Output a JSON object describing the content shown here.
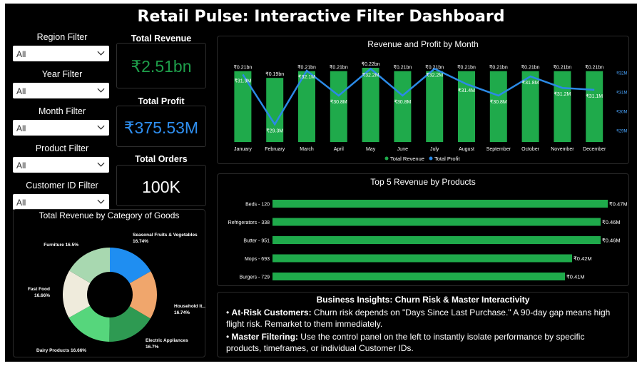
{
  "title": "Retail Pulse: Interactive Filter Dashboard",
  "filters": [
    {
      "label": "Region Filter",
      "value": "All"
    },
    {
      "label": "Year Filter",
      "value": "All"
    },
    {
      "label": "Month Filter",
      "value": "All"
    },
    {
      "label": "Product Filter",
      "value": "All"
    },
    {
      "label": "Customer ID Filter",
      "value": "All"
    }
  ],
  "kpis": {
    "revenue": {
      "title": "Total Revenue",
      "value": "₹2.51bn",
      "color": "#1e9e4a"
    },
    "profit": {
      "title": "Total Profit",
      "value": "₹375.53M",
      "color": "#2f8ff0"
    },
    "orders": {
      "title": "Total Orders",
      "value": "100K",
      "color": "#ffffff"
    }
  },
  "colors": {
    "revenue_bar": "#1faa4b",
    "profit_line": "#2b8ae6",
    "background": "#000000"
  },
  "chart_data": [
    {
      "type": "bar",
      "title": "Revenue and Profit by Month",
      "categories": [
        "January",
        "February",
        "March",
        "April",
        "May",
        "June",
        "July",
        "August",
        "September",
        "October",
        "November",
        "December"
      ],
      "series": [
        {
          "name": "Total Revenue",
          "type": "bar",
          "values": [
            0.21,
            0.19,
            0.21,
            0.21,
            0.22,
            0.21,
            0.21,
            0.21,
            0.21,
            0.21,
            0.21,
            0.21
          ],
          "labels": [
            "₹0.21bn",
            "₹0.19bn",
            "₹0.21bn",
            "₹0.21bn",
            "₹0.22bn",
            "₹0.21bn",
            "₹0.21bn",
            "₹0.21bn",
            "₹0.21bn",
            "₹0.21bn",
            "₹0.21bn",
            "₹0.21bn"
          ]
        },
        {
          "name": "Total Profit",
          "type": "line",
          "values": [
            31.9,
            29.3,
            32.1,
            30.8,
            32.2,
            30.8,
            32.2,
            31.4,
            30.8,
            31.8,
            31.2,
            31.1
          ],
          "labels": [
            "₹31.9M",
            "₹29.3M",
            "₹32.1M",
            "₹30.8M",
            "₹32.2M",
            "₹30.8M",
            "₹32.2M",
            "₹31.4M",
            "₹30.8M",
            "₹31.8M",
            "₹31.2M",
            "₹31.1M"
          ]
        }
      ],
      "y2_ticks": [
        "₹32M",
        "₹31M",
        "₹30M",
        "₹29M"
      ],
      "y2_tick_values": [
        32,
        31,
        30,
        29
      ],
      "legend": [
        "Total Revenue",
        "Total Profit"
      ]
    },
    {
      "type": "bar",
      "orientation": "horizontal",
      "title": "Top 5 Revenue by Products",
      "categories": [
        "Beds - 120",
        "Refrigerators - 338",
        "Butter - 951",
        "Mops - 693",
        "Burgers - 729"
      ],
      "values": [
        0.47,
        0.46,
        0.46,
        0.42,
        0.41
      ],
      "labels": [
        "₹0.47M",
        "₹0.46M",
        "₹0.46M",
        "₹0.42M",
        "₹0.41M"
      ]
    },
    {
      "type": "pie",
      "title": "Total Revenue by Category of Goods",
      "categories": [
        "Seasonal Fruits & Vegetables",
        "Household It...",
        "Electric Appliances",
        "Dairy Products",
        "Fast Food",
        "Furniture"
      ],
      "values": [
        16.74,
        16.74,
        16.7,
        16.66,
        16.66,
        16.5
      ],
      "labels": [
        "16.74%",
        "16.74%",
        "16.7%",
        "16.66%",
        "16.66%",
        "16.5%"
      ],
      "colors": [
        "#1f8ef1",
        "#f0a66c",
        "#2e9a52",
        "#56d67c",
        "#efebdc",
        "#a8d8b0"
      ]
    }
  ],
  "insights": {
    "title": "Business Insights: Churn Risk & Master Interactivity",
    "items": [
      {
        "head": "At-Risk Customers:",
        "text": " Churn risk depends on \"Days Since Last Purchase.\" A 90-day gap means high flight risk. Remarket to them immediately."
      },
      {
        "head": "Master Filtering:",
        "text": " Use the control panel on the left to instantly isolate performance by specific products, timeframes, or individual Customer IDs."
      }
    ]
  }
}
